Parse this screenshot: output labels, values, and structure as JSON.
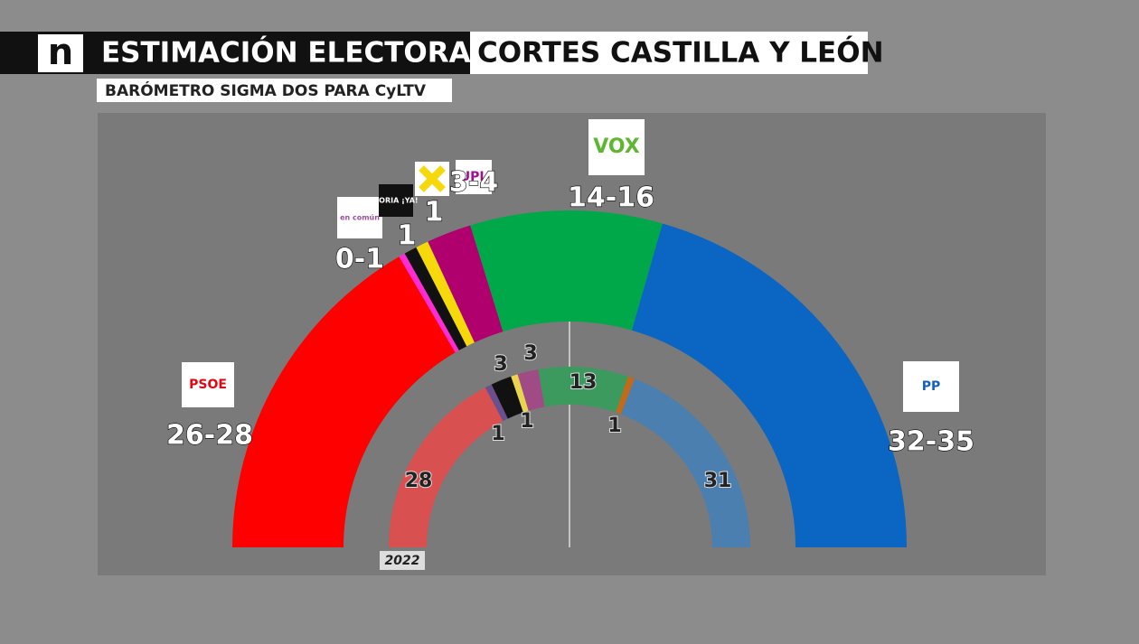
{
  "header": {
    "logo": "n",
    "title": "ESTIMACIÓN ELECTORAL",
    "title_right": "CORTES CASTILLA Y LEÓN",
    "subtitle": "BARÓMETRO SIGMA DOS PARA CyLTV"
  },
  "chart_data": {
    "type": "hemicycle",
    "estimate": {
      "logos": [
        "PSOE",
        "en común",
        "SORIA ¡YA!",
        null,
        "UPL",
        "VOX",
        "PP"
      ],
      "low": [
        26,
        0,
        1,
        1,
        3,
        14,
        32
      ],
      "high": [
        28,
        1,
        1,
        1,
        4,
        16,
        35
      ],
      "value_labels": [
        "26-28",
        "0-1",
        "1",
        "1",
        "3-4",
        "14-16",
        "32-35"
      ],
      "colors": [
        "#ff0000",
        "#ff2bd6",
        "#111111",
        "#f5d90a",
        "#b0006e",
        "#00a84a",
        "#0a66c2"
      ]
    },
    "previous": {
      "label": "2022",
      "values": [
        28,
        1,
        3,
        1,
        3,
        13,
        1,
        31
      ],
      "colors": [
        "#d95050",
        "#6b4f8f",
        "#111111",
        "#e8d44f",
        "#a04a86",
        "#3c9a5f",
        "#c06a1a",
        "#4a7fb0"
      ]
    }
  }
}
